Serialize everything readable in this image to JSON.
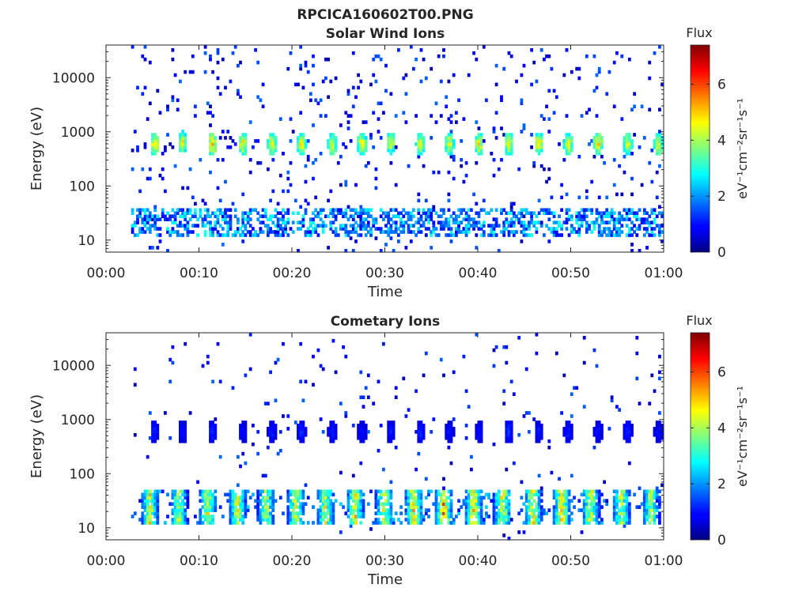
{
  "figure": {
    "title_line1": "RPCICA160602T00.PNG"
  },
  "chart_data": [
    {
      "type": "heatmap",
      "title": "Solar Wind Ions",
      "xlabel": "Time",
      "ylabel": "Energy (eV)",
      "x_ticks": [
        "00:00",
        "00:10",
        "00:20",
        "00:30",
        "00:40",
        "00:50",
        "01:00"
      ],
      "x_range_minutes": [
        0,
        60
      ],
      "y_scale": "log",
      "y_range": [
        6,
        40000
      ],
      "y_ticks": [
        10,
        100,
        1000,
        10000
      ],
      "y_tick_labels": [
        "10",
        "100",
        "1000",
        "10000"
      ],
      "colorbar": {
        "label": "eV⁻¹cm⁻²sr⁻¹s⁻¹",
        "title": "Flux",
        "range": [
          0,
          7.4
        ],
        "ticks": [
          0,
          2,
          4,
          6
        ],
        "colormap": "jet"
      },
      "data_start_minute": 2.7,
      "sweep_period_minutes": 3.2,
      "beam_peaks": [
        {
          "minute": 5.1,
          "energy_eV": 600,
          "flux": 4.8
        },
        {
          "minute": 8.1,
          "energy_eV": 650,
          "flux": 4.5
        },
        {
          "minute": 11.3,
          "energy_eV": 600,
          "flux": 4.8
        },
        {
          "minute": 14.6,
          "energy_eV": 600,
          "flux": 4.6
        },
        {
          "minute": 17.7,
          "energy_eV": 600,
          "flux": 4.7
        },
        {
          "minute": 20.9,
          "energy_eV": 600,
          "flux": 4.6
        },
        {
          "minute": 24.2,
          "energy_eV": 600,
          "flux": 4.5
        },
        {
          "minute": 27.4,
          "energy_eV": 600,
          "flux": 4.6
        },
        {
          "minute": 30.5,
          "energy_eV": 620,
          "flux": 4.4
        },
        {
          "minute": 33.7,
          "energy_eV": 600,
          "flux": 4.3
        },
        {
          "minute": 36.8,
          "energy_eV": 620,
          "flux": 4.4
        },
        {
          "minute": 40.0,
          "energy_eV": 600,
          "flux": 4.6
        },
        {
          "minute": 43.2,
          "energy_eV": 600,
          "flux": 4.5
        },
        {
          "minute": 46.4,
          "energy_eV": 620,
          "flux": 4.8
        },
        {
          "minute": 49.6,
          "energy_eV": 600,
          "flux": 4.5
        },
        {
          "minute": 52.8,
          "energy_eV": 620,
          "flux": 4.9
        },
        {
          "minute": 56.0,
          "energy_eV": 600,
          "flux": 4.4
        },
        {
          "minute": 59.3,
          "energy_eV": 600,
          "flux": 4.6
        }
      ],
      "low_energy_band_eV": [
        12,
        40
      ],
      "low_energy_band_flux": 2.5
    },
    {
      "type": "heatmap",
      "title": "Cometary Ions",
      "xlabel": "Time",
      "ylabel": "Energy (eV)",
      "x_ticks": [
        "00:00",
        "00:10",
        "00:20",
        "00:30",
        "00:40",
        "00:50",
        "01:00"
      ],
      "x_range_minutes": [
        0,
        60
      ],
      "y_scale": "log",
      "y_range": [
        6,
        40000
      ],
      "y_ticks": [
        10,
        100,
        1000,
        10000
      ],
      "y_tick_labels": [
        "10",
        "100",
        "1000",
        "10000"
      ],
      "colorbar": {
        "label": "eV⁻¹cm⁻²sr⁻¹s⁻¹",
        "title": "Flux",
        "range": [
          0,
          7.4
        ],
        "ticks": [
          0,
          2,
          4,
          6
        ],
        "colormap": "jet"
      },
      "data_start_minute": 2.7,
      "sweep_period_minutes": 3.2,
      "beam_peaks": [
        {
          "minute": 5.1,
          "energy_eV": 600,
          "flux": 1.2
        },
        {
          "minute": 8.1,
          "energy_eV": 600,
          "flux": 1.0
        },
        {
          "minute": 11.3,
          "energy_eV": 600,
          "flux": 1.2
        },
        {
          "minute": 14.6,
          "energy_eV": 600,
          "flux": 1.0
        },
        {
          "minute": 17.7,
          "energy_eV": 600,
          "flux": 1.1
        },
        {
          "minute": 20.9,
          "energy_eV": 600,
          "flux": 1.2
        },
        {
          "minute": 24.2,
          "energy_eV": 600,
          "flux": 1.1
        },
        {
          "minute": 27.4,
          "energy_eV": 600,
          "flux": 1.0
        },
        {
          "minute": 30.5,
          "energy_eV": 600,
          "flux": 1.1
        },
        {
          "minute": 33.7,
          "energy_eV": 600,
          "flux": 1.2
        },
        {
          "minute": 36.8,
          "energy_eV": 600,
          "flux": 1.0
        },
        {
          "minute": 40.0,
          "energy_eV": 600,
          "flux": 1.1
        },
        {
          "minute": 43.2,
          "energy_eV": 600,
          "flux": 1.3
        },
        {
          "minute": 46.4,
          "energy_eV": 600,
          "flux": 1.1
        },
        {
          "minute": 49.6,
          "energy_eV": 600,
          "flux": 1.2
        },
        {
          "minute": 52.8,
          "energy_eV": 600,
          "flux": 1.0
        },
        {
          "minute": 56.0,
          "energy_eV": 600,
          "flux": 1.2
        },
        {
          "minute": 59.3,
          "energy_eV": 600,
          "flux": 1.0
        }
      ],
      "low_energy_bursts": [
        {
          "minute": 4.6,
          "flux": 5.4
        },
        {
          "minute": 7.7,
          "flux": 5.0
        },
        {
          "minute": 10.8,
          "flux": 5.2
        },
        {
          "minute": 14.0,
          "flux": 5.3
        },
        {
          "minute": 17.1,
          "flux": 5.0
        },
        {
          "minute": 20.3,
          "flux": 5.3
        },
        {
          "minute": 23.5,
          "flux": 5.2
        },
        {
          "minute": 26.7,
          "flux": 5.6
        },
        {
          "minute": 29.8,
          "flux": 5.5
        },
        {
          "minute": 33.0,
          "flux": 5.9
        },
        {
          "minute": 36.2,
          "flux": 6.3
        },
        {
          "minute": 39.4,
          "flux": 5.9
        },
        {
          "minute": 42.5,
          "flux": 5.6
        },
        {
          "minute": 45.8,
          "flux": 5.7
        },
        {
          "minute": 48.9,
          "flux": 5.8
        },
        {
          "minute": 52.0,
          "flux": 5.4
        },
        {
          "minute": 55.3,
          "flux": 5.1
        },
        {
          "minute": 58.5,
          "flux": 5.0
        }
      ],
      "low_energy_band_eV": [
        12,
        50
      ]
    }
  ]
}
